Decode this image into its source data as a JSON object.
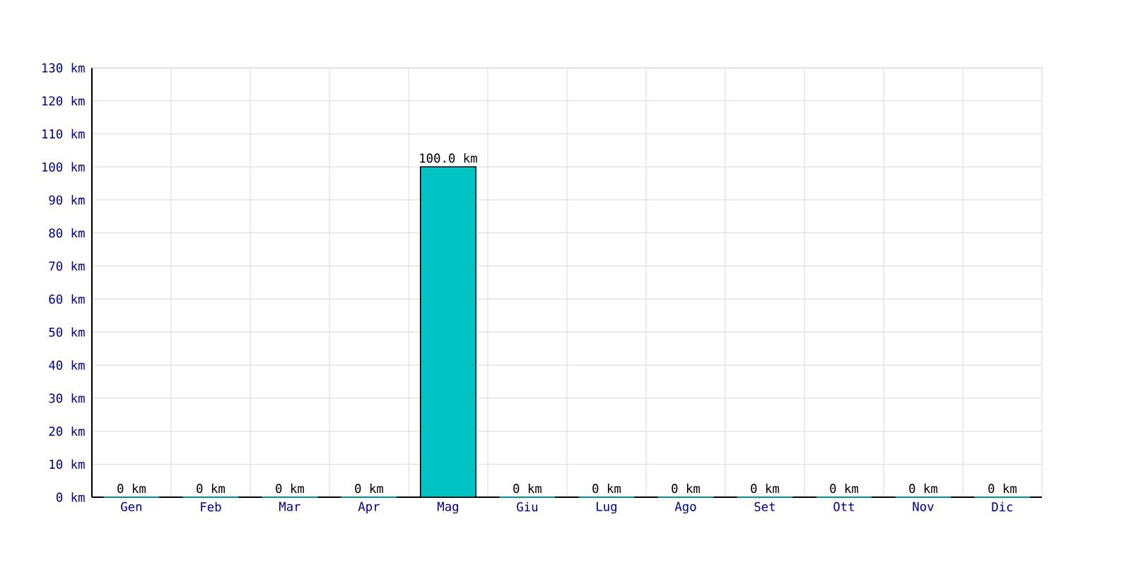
{
  "chart_data": {
    "type": "bar",
    "categories": [
      "Gen",
      "Feb",
      "Mar",
      "Apr",
      "Mag",
      "Giu",
      "Lug",
      "Ago",
      "Set",
      "Ott",
      "Nov",
      "Dic"
    ],
    "values": [
      0,
      0,
      0,
      0,
      100,
      0,
      0,
      0,
      0,
      0,
      0,
      0
    ],
    "value_labels": [
      "0 km",
      "0 km",
      "0 km",
      "0 km",
      "100.0 km",
      "0 km",
      "0 km",
      "0 km",
      "0 km",
      "0 km",
      "0 km",
      "0 km"
    ],
    "color": "#00c4c4",
    "ylim": [
      0,
      130
    ],
    "yticks": [
      {
        "value": 0,
        "label": "0 km"
      },
      {
        "value": 10,
        "label": "10 km"
      },
      {
        "value": 20,
        "label": "20 km"
      },
      {
        "value": 30,
        "label": "30 km"
      },
      {
        "value": 40,
        "label": "40 km"
      },
      {
        "value": 50,
        "label": "50 km"
      },
      {
        "value": 60,
        "label": "60 km"
      },
      {
        "value": 70,
        "label": "70 km"
      },
      {
        "value": 80,
        "label": "80 km"
      },
      {
        "value": 90,
        "label": "90 km"
      },
      {
        "value": 100,
        "label": "100 km"
      },
      {
        "value": 110,
        "label": "110 km"
      },
      {
        "value": 120,
        "label": "120 km"
      },
      {
        "value": 130,
        "label": "130 km"
      }
    ],
    "grid": true
  }
}
